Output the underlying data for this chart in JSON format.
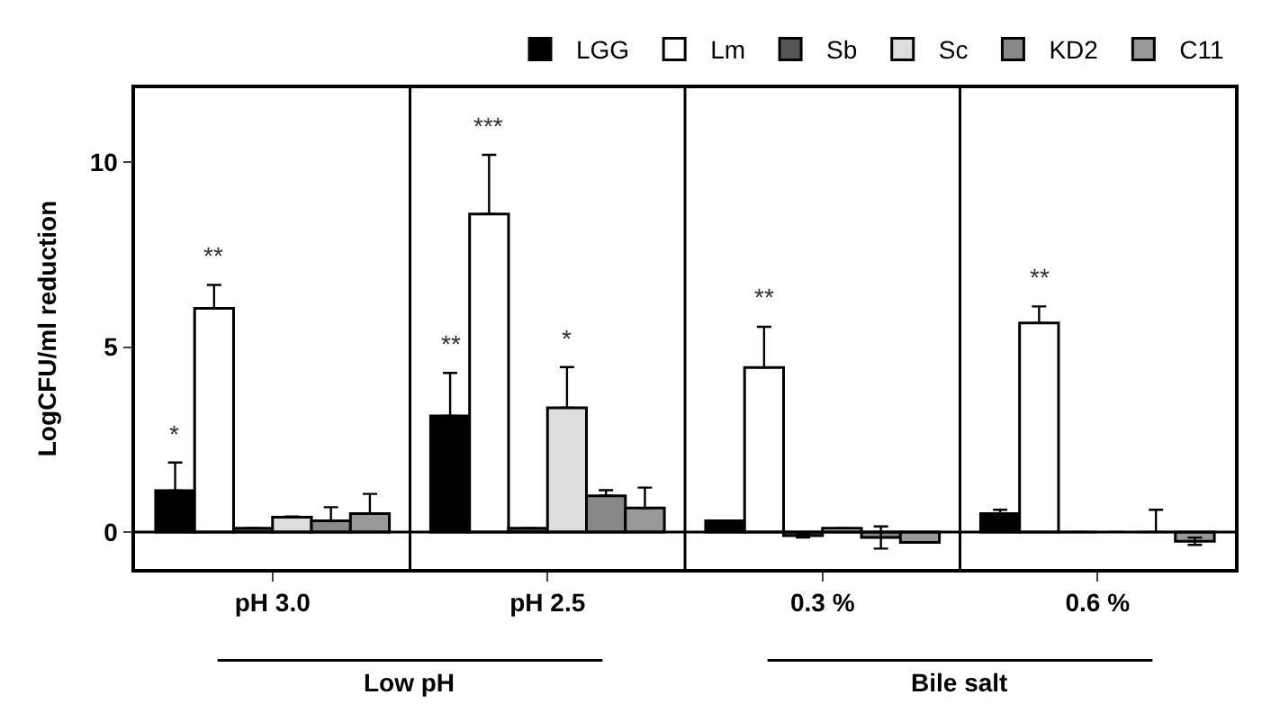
{
  "chart_data": {
    "type": "bar",
    "ylabel": "LogCFU/ml reduction",
    "categories": [
      "pH 3.0",
      "pH 2.5",
      "0.3 %",
      "0.6 %"
    ],
    "series": [
      {
        "name": "LGG",
        "color": "#000000",
        "values": [
          1.12,
          3.14,
          0.3,
          0.5
        ],
        "errors": [
          0.76,
          1.16,
          null,
          0.1
        ],
        "value_labels": [
          "*",
          "**",
          null,
          null
        ]
      },
      {
        "name": "Lm",
        "color": "#ffffff",
        "values": [
          6.05,
          8.6,
          4.45,
          5.65
        ],
        "errors": [
          0.63,
          1.6,
          1.1,
          0.45
        ],
        "value_labels": [
          "**",
          "***",
          "**",
          "**"
        ]
      },
      {
        "name": "Sb",
        "color": "#555555",
        "values": [
          0.1,
          0.1,
          -0.1,
          0.0
        ],
        "errors": [
          null,
          null,
          0.05,
          null
        ]
      },
      {
        "name": "Sc",
        "color": "#dddddd",
        "values": [
          0.4,
          3.36,
          0.1,
          0.0
        ],
        "errors": [
          0.02,
          1.1,
          null,
          null
        ],
        "value_labels": [
          null,
          "*",
          null,
          null
        ]
      },
      {
        "name": "KD2",
        "color": "#888888",
        "values": [
          0.3,
          0.98,
          -0.15,
          0.0
        ],
        "errors": [
          0.37,
          0.15,
          0.3,
          0.6
        ]
      },
      {
        "name": "C11",
        "color": "#999999",
        "values": [
          0.5,
          0.65,
          -0.28,
          -0.25
        ],
        "errors": [
          0.53,
          0.55,
          null,
          0.1
        ]
      }
    ],
    "ylim": [
      -1,
      12
    ],
    "yticks": [
      0,
      5,
      10
    ],
    "legend": "top",
    "ref_lines": [
      {
        "axis": "y",
        "value": 0
      }
    ],
    "annotations": [
      "Low pH",
      "Bile salt"
    ]
  }
}
